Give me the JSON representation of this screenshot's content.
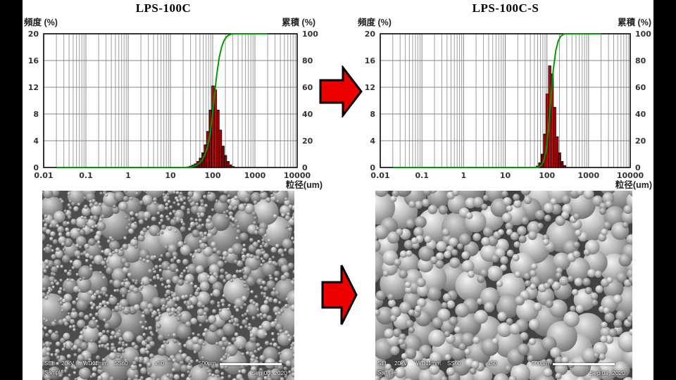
{
  "page": {
    "background": "#000000",
    "slide_background": "#ffffff"
  },
  "arrow": {
    "fill_color": "#ee0000",
    "outline_color": "#000000",
    "direction": "right"
  },
  "chart_data": [
    {
      "type": "bar",
      "title": "LPS-100C",
      "xlabel": "粒径(um)",
      "ylabel_left": "頻度 (%)",
      "ylabel_right": "累積 (%)",
      "x_scale": "log",
      "xlim": [
        0.01,
        10000
      ],
      "ylim_left": [
        0,
        20
      ],
      "ylim_right": [
        0,
        100
      ],
      "x_tick_labels": [
        "0.01",
        "0.1",
        "1",
        "10",
        "100",
        "1000",
        "10000"
      ],
      "y_ticks_left": [
        0,
        4,
        8,
        12,
        16,
        20
      ],
      "y_ticks_right": [
        0,
        20,
        40,
        60,
        80,
        100
      ],
      "grid": true,
      "legend_position": "none",
      "bar_color": "#b00000",
      "line_color": "#009a00",
      "bins_um": [
        26.1,
        29.9,
        34.3,
        39.2,
        45.0,
        51.5,
        59.0,
        67.6,
        77.5,
        88.8,
        101.8,
        116.6,
        133.6,
        153.1,
        175.4,
        201.0,
        230.4,
        264.0,
        302.5
      ],
      "frequency_pct": [
        0.1,
        0.2,
        0.35,
        0.55,
        0.9,
        1.4,
        2.2,
        3.4,
        5.4,
        8.6,
        12.2,
        11.6,
        8.6,
        5.6,
        3.2,
        1.8,
        0.9,
        0.4,
        0.15
      ],
      "cumulative_pct": [
        0.1,
        0.4,
        1.0,
        1.8,
        3.1,
        5.2,
        8.4,
        13.5,
        21.5,
        34.2,
        52.3,
        69.4,
        82.2,
        90.4,
        95.2,
        97.9,
        99.2,
        99.8,
        100
      ],
      "cumulative_start_um": 0.02,
      "cumulative_end_um": 2000
    },
    {
      "type": "bar",
      "title": "LPS-100C-S",
      "xlabel": "粒径(um)",
      "ylabel_left": "頻度 (%)",
      "ylabel_right": "累積 (%)",
      "x_scale": "log",
      "xlim": [
        0.01,
        10000
      ],
      "ylim_left": [
        0,
        20
      ],
      "ylim_right": [
        0,
        100
      ],
      "x_tick_labels": [
        "0.01",
        "0.1",
        "1",
        "10",
        "100",
        "1000",
        "10000"
      ],
      "y_ticks_left": [
        0,
        4,
        8,
        12,
        16,
        20
      ],
      "y_ticks_right": [
        0,
        20,
        40,
        60,
        80,
        100
      ],
      "grid": true,
      "legend_position": "none",
      "bar_color": "#b00000",
      "line_color": "#009a00",
      "bins_um": [
        59.0,
        67.6,
        77.5,
        88.8,
        101.8,
        116.6,
        133.6,
        153.1,
        175.4,
        201.0,
        230.4,
        264.0
      ],
      "frequency_pct": [
        0.2,
        0.7,
        2.0,
        5.0,
        11.0,
        15.2,
        14.0,
        9.0,
        4.6,
        2.2,
        0.9,
        0.3
      ],
      "cumulative_pct": [
        0.3,
        1.4,
        4.5,
        12.1,
        29.0,
        52.4,
        73.9,
        87.7,
        94.8,
        98.2,
        99.5,
        100
      ],
      "cumulative_start_um": 0.02,
      "cumulative_end_um": 2000
    }
  ],
  "sem_images": [
    {
      "detector": "SEI",
      "voltage": "20kV",
      "working_distance": "WD11mm",
      "spot_size": "SS60",
      "magnification": "x50",
      "scale_label": "500μm",
      "sample_label": "Sample",
      "date": "Sep 03, 2020"
    },
    {
      "detector": "SEI",
      "voltage": "20kV",
      "working_distance": "WD11mm",
      "spot_size": "SS60",
      "magnification": "x50",
      "scale_label": "500μm",
      "sample_label": "Sample",
      "date": "Sep 04, 2020"
    }
  ]
}
